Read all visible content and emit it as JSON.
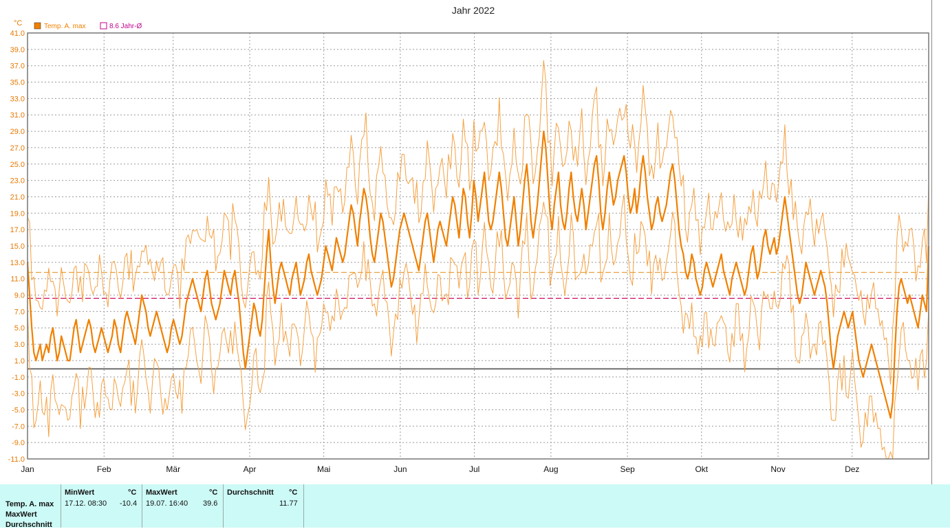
{
  "chart_data": {
    "type": "line",
    "title": "Jahr 2022",
    "y_unit": "°C",
    "ylim": [
      -11.0,
      41.0
    ],
    "yticks": [
      "41.0",
      "39.0",
      "37.0",
      "35.0",
      "33.0",
      "31.0",
      "29.0",
      "27.0",
      "25.0",
      "23.0",
      "21.0",
      "19.0",
      "17.0",
      "15.0",
      "13.0",
      "11.0",
      "9.0",
      "7.0",
      "5.0",
      "3.0",
      "1.0",
      "-1.0",
      "-3.0",
      "-5.0",
      "-7.0",
      "-9.0",
      "-11.0"
    ],
    "months": [
      "Jan",
      "Feb",
      "Mär",
      "Apr",
      "Mai",
      "Jun",
      "Jul",
      "Aug",
      "Sep",
      "Okt",
      "Nov",
      "Dez"
    ],
    "legend": [
      {
        "label": "Temp. A. max",
        "color": "#F08000"
      },
      {
        "label": "8.6 Jahr-Ø",
        "color": "#C0008C"
      }
    ],
    "reference_lines": [
      {
        "value": 11.77,
        "color": "#E8A040",
        "style": "dashed"
      },
      {
        "value": 8.6,
        "color": "#D02070",
        "style": "dashed"
      },
      {
        "value": 0.0,
        "color": "#707070",
        "style": "solid"
      }
    ],
    "grid": true,
    "series": [
      {
        "name": "Temp. A. max",
        "role": "main",
        "color": "#F08000",
        "values": [
          13,
          9,
          5,
          2,
          1,
          2,
          3,
          1,
          2,
          3,
          2,
          4,
          5,
          3,
          1,
          2,
          4,
          3,
          2,
          1,
          1,
          3,
          5,
          6,
          4,
          2,
          3,
          4,
          5,
          6,
          5,
          3,
          2,
          3,
          4,
          5,
          4,
          3,
          2,
          3,
          4,
          6,
          5,
          3,
          2,
          4,
          6,
          7,
          6,
          5,
          4,
          3,
          5,
          7,
          9,
          8,
          7,
          5,
          4,
          5,
          6,
          7,
          6,
          5,
          4,
          3,
          2,
          3,
          5,
          6,
          5,
          4,
          3,
          4,
          6,
          8,
          9,
          10,
          11,
          10,
          9,
          8,
          7,
          9,
          11,
          12,
          10,
          8,
          7,
          6,
          7,
          8,
          10,
          12,
          11,
          10,
          9,
          11,
          12,
          10,
          8,
          5,
          2,
          0,
          2,
          4,
          6,
          8,
          7,
          5,
          4,
          6,
          10,
          14,
          17,
          13,
          10,
          8,
          10,
          12,
          13,
          12,
          11,
          10,
          9,
          11,
          12,
          13,
          11,
          9,
          10,
          11,
          13,
          14,
          12,
          11,
          10,
          9,
          10,
          11,
          13,
          15,
          14,
          13,
          12,
          14,
          16,
          15,
          14,
          13,
          14,
          16,
          18,
          20,
          19,
          17,
          15,
          18,
          20,
          22,
          21,
          19,
          16,
          14,
          13,
          15,
          17,
          19,
          18,
          16,
          14,
          12,
          10,
          11,
          13,
          15,
          17,
          18,
          19,
          18,
          17,
          16,
          15,
          14,
          13,
          12,
          14,
          16,
          18,
          19,
          17,
          15,
          13,
          15,
          17,
          18,
          17,
          16,
          15,
          17,
          19,
          21,
          20,
          18,
          16,
          19,
          22,
          21,
          18,
          16,
          19,
          23,
          21,
          18,
          20,
          22,
          24,
          21,
          18,
          17,
          18,
          20,
          22,
          24,
          22,
          19,
          16,
          15,
          17,
          19,
          21,
          18,
          15,
          17,
          20,
          23,
          25,
          22,
          18,
          16,
          18,
          20,
          23,
          26,
          29,
          27,
          23,
          19,
          17,
          20,
          22,
          24,
          20,
          18,
          17,
          19,
          22,
          24,
          21,
          19,
          18,
          20,
          22,
          20,
          17,
          19,
          21,
          23,
          25,
          26,
          23,
          19,
          17,
          19,
          22,
          24,
          22,
          20,
          21,
          23,
          24,
          25,
          26,
          24,
          21,
          19,
          20,
          22,
          19,
          21,
          24,
          26,
          24,
          21,
          19,
          17,
          18,
          20,
          21,
          19,
          18,
          19,
          20,
          22,
          24,
          25,
          23,
          20,
          17,
          15,
          14,
          12,
          11,
          12,
          14,
          13,
          11,
          10,
          9,
          10,
          12,
          13,
          12,
          11,
          10,
          11,
          12,
          13,
          14,
          12,
          11,
          10,
          9,
          11,
          12,
          13,
          12,
          11,
          10,
          9,
          10,
          12,
          14,
          15,
          13,
          11,
          12,
          14,
          16,
          17,
          15,
          14,
          15,
          16,
          14,
          15,
          17,
          19,
          21,
          19,
          17,
          15,
          13,
          11,
          9,
          8,
          9,
          11,
          13,
          12,
          11,
          10,
          9,
          10,
          11,
          12,
          11,
          10,
          8,
          5,
          2,
          0,
          2,
          4,
          5,
          6,
          7,
          6,
          5,
          6,
          7,
          5,
          3,
          1,
          0,
          -1,
          0,
          1,
          2,
          3,
          2,
          1,
          0,
          -1,
          -2,
          -3,
          -4,
          -5,
          -6,
          -4,
          2,
          7,
          10,
          11,
          10,
          9,
          8,
          9,
          8,
          7,
          6,
          5,
          7,
          9,
          8,
          7,
          15
        ],
        "baseline_start": 0
      },
      {
        "name": "Temp. A. max",
        "role": "upper",
        "color": "#F5A040",
        "offsets": [
          4,
          6,
          5,
          6,
          7,
          5
        ]
      },
      {
        "name": "Temp. A. max",
        "role": "lower",
        "color": "#F5A040",
        "offsets": [
          -4,
          -6,
          -5,
          -6,
          -7,
          -5
        ]
      }
    ]
  },
  "stats": {
    "row_labels": [
      "Temp. A. max",
      "MaxWert",
      "Durchschnitt"
    ],
    "min": {
      "header": "MinWert",
      "unit": "°C",
      "time": "17.12. 08:30",
      "value": "-10.4"
    },
    "max": {
      "header": "MaxWert",
      "unit": "°C",
      "time": "19.07. 16:40",
      "value": "39.6"
    },
    "avg": {
      "header": "Durchschnitt",
      "unit": "°C",
      "value": "11.77"
    }
  }
}
